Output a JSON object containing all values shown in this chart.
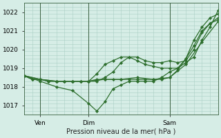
{
  "title": "",
  "xlabel": "Pression niveau de la mer( hPa )",
  "ylabel": "",
  "bg_color": "#d6ede6",
  "grid_color": "#aacfc4",
  "line_color": "#2d6e2d",
  "xlim": [
    0,
    48
  ],
  "ylim": [
    1016.5,
    1022.5
  ],
  "yticks": [
    1017,
    1018,
    1019,
    1020,
    1021,
    1022
  ],
  "ytick_labels": [
    "1017",
    "1018",
    "1019",
    "1020",
    "1021",
    "1022"
  ],
  "xtick_positions": [
    4,
    16,
    36
  ],
  "xtick_labels": [
    "Ven",
    "Dim",
    "Sam"
  ],
  "vlines": [
    4,
    16,
    36
  ],
  "series": [
    [
      0,
      1018.6,
      2,
      1018.4,
      4,
      1018.4,
      6,
      1018.3,
      8,
      1018.3,
      10,
      1018.3,
      12,
      1018.3,
      14,
      1018.3,
      16,
      1018.3,
      18,
      1018.4,
      20,
      1018.4,
      22,
      1018.4,
      24,
      1018.4,
      26,
      1018.4,
      28,
      1018.4,
      30,
      1018.4,
      32,
      1018.4,
      34,
      1018.4,
      36,
      1018.5,
      38,
      1018.9,
      40,
      1019.5,
      42,
      1020.5,
      44,
      1021.2,
      46,
      1021.7,
      48,
      1021.9
    ],
    [
      0,
      1018.6,
      2,
      1018.4,
      4,
      1018.4,
      6,
      1018.3,
      8,
      1018.3,
      10,
      1018.3,
      12,
      1018.3,
      14,
      1018.3,
      16,
      1018.3,
      18,
      1018.7,
      20,
      1019.2,
      22,
      1019.4,
      24,
      1019.6,
      26,
      1019.6,
      28,
      1019.4,
      30,
      1019.2,
      32,
      1019.1,
      34,
      1019.0,
      36,
      1019.0,
      38,
      1019.0,
      40,
      1019.5,
      42,
      1020.2,
      44,
      1021.0,
      46,
      1021.4,
      48,
      1021.7
    ],
    [
      0,
      1018.6,
      4,
      1018.3,
      8,
      1018.0,
      12,
      1017.8,
      16,
      1017.1,
      18,
      1016.7,
      20,
      1017.2,
      22,
      1017.9,
      24,
      1018.1,
      26,
      1018.3,
      28,
      1018.3,
      30,
      1018.3,
      32,
      1018.3,
      34,
      1018.5,
      36,
      1018.8,
      38,
      1019.0,
      40,
      1019.3,
      42,
      1019.6,
      44,
      1020.5,
      46,
      1021.2,
      48,
      1022.1
    ],
    [
      0,
      1018.6,
      4,
      1018.4,
      8,
      1018.3,
      10,
      1018.3,
      12,
      1018.3,
      14,
      1018.3,
      16,
      1018.3,
      18,
      1018.3,
      20,
      1018.5,
      22,
      1018.8,
      24,
      1019.3,
      26,
      1019.6,
      28,
      1019.6,
      30,
      1019.4,
      32,
      1019.3,
      34,
      1019.3,
      36,
      1019.4,
      38,
      1019.3,
      40,
      1019.4,
      42,
      1020.0,
      44,
      1020.9,
      46,
      1021.4,
      48,
      1021.6
    ],
    [
      0,
      1018.6,
      4,
      1018.4,
      8,
      1018.3,
      12,
      1018.3,
      16,
      1018.3,
      20,
      1018.4,
      24,
      1018.4,
      28,
      1018.5,
      32,
      1018.4,
      36,
      1018.5,
      40,
      1019.2,
      44,
      1020.4,
      48,
      1021.5
    ]
  ],
  "marker": "D",
  "markersize": 2.2,
  "linewidth": 0.9
}
